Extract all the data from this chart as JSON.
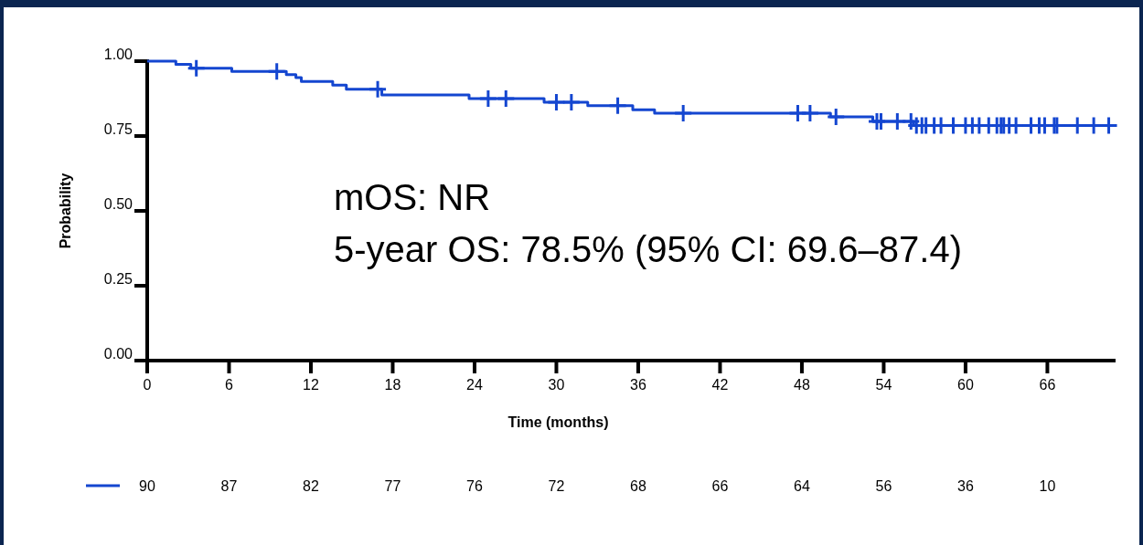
{
  "chart_data": {
    "type": "step",
    "xlabel": "Time (months)",
    "ylabel": "Probability",
    "xlim": [
      0,
      71
    ],
    "xticks": [
      0,
      6,
      12,
      18,
      24,
      30,
      36,
      42,
      48,
      54,
      60,
      66
    ],
    "ylim": [
      0,
      1
    ],
    "yticks": [
      {
        "value": 0,
        "label": "0.00"
      },
      {
        "value": 0.25,
        "label": "0.25"
      },
      {
        "value": 0.5,
        "label": "0.50"
      },
      {
        "value": 0.75,
        "label": "0.75"
      },
      {
        "value": 1,
        "label": "1.00"
      }
    ],
    "grid": false,
    "series": [
      {
        "color": "#1446d0",
        "marker": "none",
        "x": [
          0,
          2.1,
          3.2,
          6.2,
          10.2,
          10.9,
          11.3,
          13.6,
          14.6,
          17.2,
          23.6,
          29.1,
          32.3,
          35.6,
          37.2,
          50.1,
          53.2,
          56.2,
          70.9
        ],
        "values": [
          1,
          0.989,
          0.976,
          0.966,
          0.955,
          0.945,
          0.932,
          0.92,
          0.906,
          0.887,
          0.875,
          0.863,
          0.851,
          0.838,
          0.826,
          0.814,
          0.799,
          0.785,
          0.785
        ]
      },
      {
        "type": "scatter",
        "color": "#1446d0",
        "marker": "cross",
        "x": [
          3.6,
          9.5,
          16.9,
          25.0,
          26.3,
          30.0,
          31.1,
          34.5,
          39.3,
          47.7,
          48.6,
          50.5,
          53.5,
          53.8,
          55.0,
          56.0,
          56.4,
          56.8,
          57.1,
          57.7,
          58.2,
          59.1,
          60.0,
          60.5,
          61.0,
          61.7,
          62.3,
          62.6,
          62.8,
          63.2,
          63.7,
          64.8,
          65.4,
          65.8,
          66.5,
          66.7,
          68.2,
          69.4,
          70.5
        ],
        "values": [
          0.976,
          0.966,
          0.906,
          0.875,
          0.875,
          0.863,
          0.863,
          0.851,
          0.826,
          0.826,
          0.826,
          0.814,
          0.799,
          0.799,
          0.799,
          0.799,
          0.785,
          0.785,
          0.785,
          0.785,
          0.785,
          0.785,
          0.785,
          0.785,
          0.785,
          0.785,
          0.785,
          0.785,
          0.785,
          0.785,
          0.785,
          0.785,
          0.785,
          0.785,
          0.785,
          0.785,
          0.785,
          0.785,
          0.785
        ]
      }
    ],
    "annotations": [
      "mOS: NR",
      "5-year OS: 78.5% (95% CI: 69.6–87.4)",
      "90",
      "87",
      "82",
      "77",
      "76",
      "72",
      "68",
      "66",
      "64",
      "56",
      "36",
      "10"
    ]
  }
}
